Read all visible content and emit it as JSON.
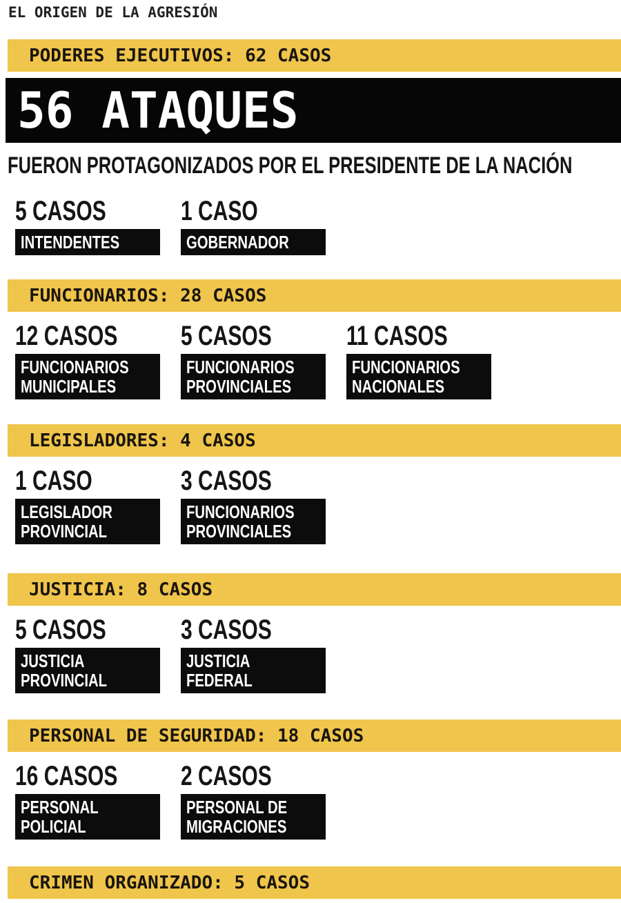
{
  "header": {
    "kicker": "EL ORIGEN DE LA AGRESIÓN"
  },
  "colors": {
    "accent_yellow": "#EFC54B",
    "bar_black": "#0C0C0C",
    "banner_black": "#060606",
    "text_dark": "#151515",
    "text_white": "#FFFFFF",
    "background": "#FFFFFF"
  },
  "sections": [
    {
      "bar_label": "PODERES EJECUTIVOS: 62 CASOS",
      "banner_big": "56 ATAQUES",
      "banner_sub": "FUERON PROTAGONIZADOS POR EL PRESIDENTE DE LA NACIÓN",
      "items": [
        {
          "count": "5 CASOS",
          "label_lines": [
            "INTENDENTES"
          ]
        },
        {
          "count": "1 CASO",
          "label_lines": [
            "GOBERNADOR"
          ]
        }
      ]
    },
    {
      "bar_label": "FUNCIONARIOS: 28 CASOS",
      "items": [
        {
          "count": "12 CASOS",
          "label_lines": [
            "FUNCIONARIOS",
            "MUNICIPALES"
          ]
        },
        {
          "count": "5 CASOS",
          "label_lines": [
            "FUNCIONARIOS",
            "PROVINCIALES"
          ]
        },
        {
          "count": "11 CASOS",
          "label_lines": [
            "FUNCIONARIOS",
            "NACIONALES"
          ]
        }
      ]
    },
    {
      "bar_label": "LEGISLADORES: 4 CASOS",
      "items": [
        {
          "count": "1 CASO",
          "label_lines": [
            "LEGISLADOR",
            "PROVINCIAL"
          ]
        },
        {
          "count": "3 CASOS",
          "label_lines": [
            "FUNCIONARIOS",
            "PROVINCIALES"
          ]
        }
      ]
    },
    {
      "bar_label": "JUSTICIA: 8 CASOS",
      "items": [
        {
          "count": "5 CASOS",
          "label_lines": [
            "JUSTICIA",
            "PROVINCIAL"
          ]
        },
        {
          "count": "3 CASOS",
          "label_lines": [
            "JUSTICIA",
            "FEDERAL"
          ]
        }
      ]
    },
    {
      "bar_label": "PERSONAL DE SEGURIDAD: 18 CASOS",
      "items": [
        {
          "count": "16 CASOS",
          "label_lines": [
            "PERSONAL",
            "POLICIAL"
          ]
        },
        {
          "count": "2 CASOS",
          "label_lines": [
            "PERSONAL DE",
            "MIGRACIONES"
          ]
        }
      ]
    },
    {
      "bar_label": "CRIMEN ORGANIZADO: 5 CASOS",
      "items": []
    }
  ],
  "chart_data": {
    "type": "table",
    "title": "EL ORIGEN DE LA AGRESIÓN",
    "groups": [
      {
        "group": "PODERES EJECUTIVOS",
        "total": 62,
        "items": [
          {
            "label": "PRESIDENTE DE LA NACIÓN (ATAQUES)",
            "value": 56
          },
          {
            "label": "INTENDENTES",
            "value": 5
          },
          {
            "label": "GOBERNADOR",
            "value": 1
          }
        ]
      },
      {
        "group": "FUNCIONARIOS",
        "total": 28,
        "items": [
          {
            "label": "FUNCIONARIOS MUNICIPALES",
            "value": 12
          },
          {
            "label": "FUNCIONARIOS PROVINCIALES",
            "value": 5
          },
          {
            "label": "FUNCIONARIOS NACIONALES",
            "value": 11
          }
        ]
      },
      {
        "group": "LEGISLADORES",
        "total": 4,
        "items": [
          {
            "label": "LEGISLADOR PROVINCIAL",
            "value": 1
          },
          {
            "label": "FUNCIONARIOS PROVINCIALES",
            "value": 3
          }
        ]
      },
      {
        "group": "JUSTICIA",
        "total": 8,
        "items": [
          {
            "label": "JUSTICIA PROVINCIAL",
            "value": 5
          },
          {
            "label": "JUSTICIA FEDERAL",
            "value": 3
          }
        ]
      },
      {
        "group": "PERSONAL DE SEGURIDAD",
        "total": 18,
        "items": [
          {
            "label": "PERSONAL POLICIAL",
            "value": 16
          },
          {
            "label": "PERSONAL DE MIGRACIONES",
            "value": 2
          }
        ]
      },
      {
        "group": "CRIMEN ORGANIZADO",
        "total": 5,
        "items": []
      }
    ]
  }
}
